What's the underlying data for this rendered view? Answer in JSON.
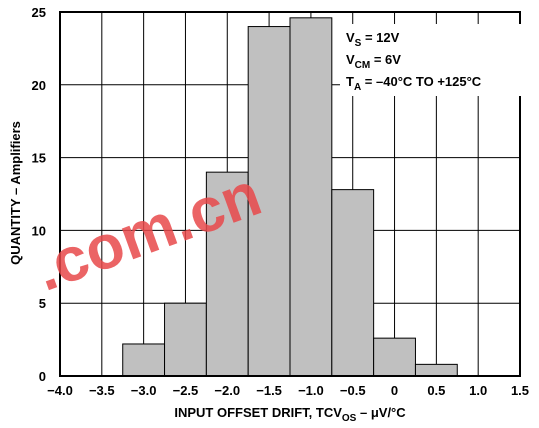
{
  "chart_data": {
    "type": "bar",
    "bin_edges": [
      -3.25,
      -2.75,
      -2.25,
      -1.75,
      -1.25,
      -0.75,
      -0.25,
      0.25,
      0.75
    ],
    "values": [
      2.2,
      5.0,
      14.0,
      24.0,
      24.6,
      12.8,
      2.6,
      0.8
    ],
    "xlim": [
      -4.0,
      1.5
    ],
    "ylim": [
      0,
      25
    ],
    "x_ticks": [
      "-4.0",
      "-3.5",
      "-3.0",
      "-2.5",
      "-2.0",
      "-1.5",
      "-1.0",
      "-0.5",
      "0",
      "0.5",
      "1.0",
      "1.5"
    ],
    "y_ticks": [
      "0",
      "5",
      "10",
      "15",
      "20",
      "25"
    ],
    "xlabel": {
      "main": "INPUT OFFSET DRIFT, TCV",
      "sub": "OS",
      "tail": " – μV/°C"
    },
    "ylabel": "QUANTITY – Amplifiers",
    "grid": true,
    "annotations": [
      {
        "main": "V",
        "sub": "S",
        "tail": " = 12V"
      },
      {
        "main": "V",
        "sub": "CM",
        "tail": " = 6V"
      },
      {
        "main": "T",
        "sub": "A",
        "tail": " = –40°C TO +125°C"
      }
    ],
    "bar_color": "#c0c0c0",
    "grid_color": "#000000"
  },
  "watermark": {
    "text": ".com.cn",
    "color": "#e8494b"
  }
}
